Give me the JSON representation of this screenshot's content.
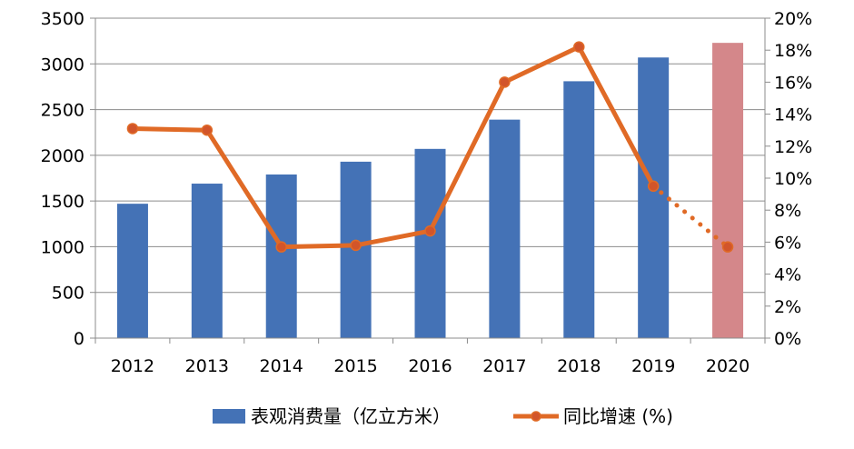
{
  "chart_data": {
    "type": "bar",
    "categories": [
      "2012",
      "2013",
      "2014",
      "2015",
      "2016",
      "2017",
      "2018",
      "2019",
      "2020"
    ],
    "series": [
      {
        "name": "表观消费量（亿立方米）",
        "type": "bar",
        "axis": "left",
        "values": [
          1470,
          1690,
          1790,
          1930,
          2070,
          2390,
          2810,
          3070,
          3230
        ],
        "color": "#4472B6",
        "highlight_color": "#D4878A",
        "highlight_index": 8
      },
      {
        "name": "同比增速 (%)",
        "type": "line",
        "axis": "right",
        "values": [
          13.1,
          13.0,
          5.7,
          5.8,
          6.7,
          16.0,
          18.2,
          9.5,
          5.7
        ],
        "color": "#E06A26",
        "marker_fill": "#D2552A",
        "dotted_from_index": 7
      }
    ],
    "y_left": {
      "lim": [
        0,
        3500
      ],
      "ticks": [
        "0",
        "500",
        "1000",
        "1500",
        "2000",
        "2500",
        "3000",
        "3500"
      ]
    },
    "y_right": {
      "lim": [
        0,
        20
      ],
      "ticks": [
        "0%",
        "2%",
        "4%",
        "6%",
        "8%",
        "10%",
        "12%",
        "14%",
        "16%",
        "18%",
        "20%"
      ]
    },
    "grid": true,
    "legend": "bottom",
    "title": "",
    "xlabel": "",
    "ylabel": ""
  }
}
